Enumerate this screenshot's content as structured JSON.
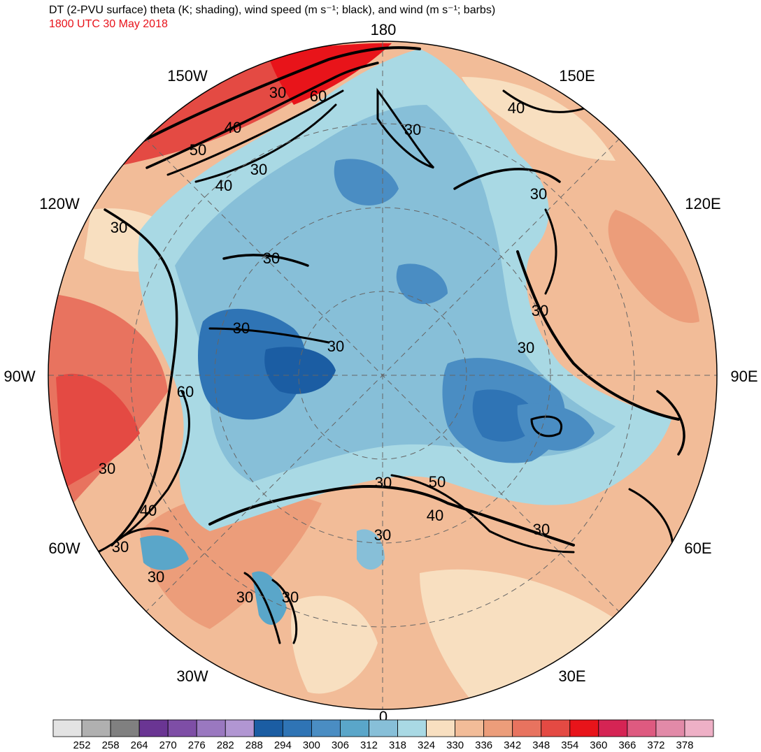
{
  "header": {
    "title": "DT (2-PVU surface) theta (K; shading), wind speed (m s⁻¹; black), and wind (m s⁻¹; barbs)",
    "valid_time": "1800 UTC 30 May 2018"
  },
  "map": {
    "projection": "north-polar-stereographic",
    "longitude_labels": {
      "top": "180",
      "upper_left": "150W",
      "upper_right": "150E",
      "left_upper": "120W",
      "right_upper": "120E",
      "left": "90W",
      "right": "90E",
      "left_lower": "60W",
      "right_lower": "60E",
      "lower_left": "30W",
      "lower_right": "30E",
      "bottom": "0"
    },
    "wind_speed_contour_labels": [
      "30",
      "60",
      "40",
      "50",
      "30",
      "40",
      "30",
      "30",
      "30",
      "30",
      "30",
      "30",
      "60",
      "30",
      "30",
      "40",
      "30",
      "30",
      "30",
      "30",
      "30",
      "50",
      "40",
      "30",
      "30",
      "40",
      "30"
    ]
  },
  "colorbar": {
    "ticks": [
      "252",
      "258",
      "264",
      "270",
      "276",
      "282",
      "288",
      "294",
      "300",
      "306",
      "312",
      "318",
      "324",
      "330",
      "336",
      "342",
      "348",
      "354",
      "360",
      "366",
      "372",
      "378"
    ],
    "colors": [
      "#e3e3e3",
      "#b0b0b0",
      "#808080",
      "#6a3593",
      "#7e4ea6",
      "#9a78c0",
      "#b196d2",
      "#1b5da3",
      "#2f74b5",
      "#4a8dc3",
      "#5aa6c9",
      "#87bfd8",
      "#a9d9e4",
      "#f8dfc0",
      "#f2bc98",
      "#ec9d7a",
      "#e8735f",
      "#e44a43",
      "#e8141a",
      "#d52454",
      "#de5a80",
      "#e28aa8",
      "#eeb0c6"
    ]
  }
}
